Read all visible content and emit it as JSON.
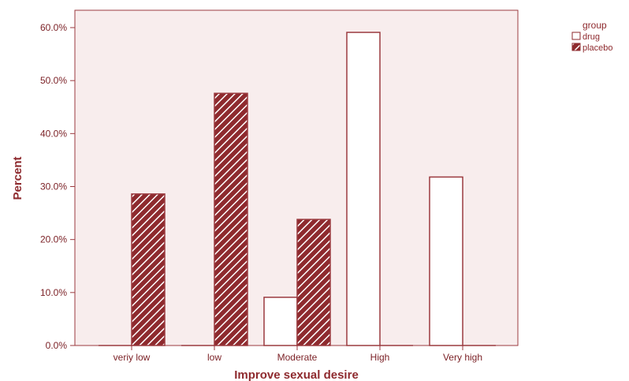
{
  "chart_data": {
    "type": "bar",
    "xlabel": "Improve sexual desire",
    "ylabel": "Percent",
    "categories": [
      "veriy low",
      "low",
      "Moderate",
      "High",
      "Very high"
    ],
    "series": [
      {
        "name": "drug",
        "values": [
          0.0,
          0.0,
          9.1,
          59.1,
          31.8
        ],
        "fill": "#ffffff",
        "pattern": "none"
      },
      {
        "name": "placebo",
        "values": [
          28.6,
          47.6,
          23.8,
          0.0,
          0.0
        ],
        "fill": "#8e2a2e",
        "pattern": "diagonal-hatch"
      }
    ],
    "ylim": [
      0,
      60
    ],
    "yticks": [
      "0.0%",
      "10.0%",
      "20.0%",
      "30.0%",
      "40.0%",
      "50.0%",
      "60.0%"
    ],
    "legend": {
      "title": "group",
      "position": "top-right"
    },
    "grid": false,
    "colors": {
      "plot_background": "#f8eded",
      "bar_stroke": "#9b3a3f",
      "text": "#8e2a2e"
    }
  }
}
